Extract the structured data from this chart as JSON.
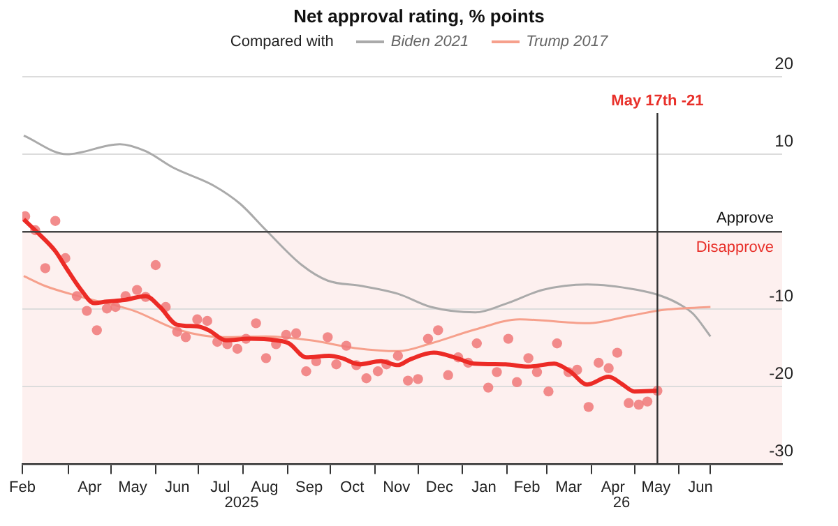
{
  "chart_data": {
    "type": "line",
    "title": "Net approval rating, % points",
    "legend_title": "Compared with",
    "legend": "top",
    "grid": "y",
    "xlim": [
      "2025-02-28",
      "2026-08-12"
    ],
    "xticks": [
      {
        "value": "2025-02-28",
        "label": "Feb"
      },
      {
        "value": "2025-04-01",
        "label": null
      },
      {
        "value": "2025-04-16",
        "label": "Apr"
      },
      {
        "value": "2025-05-01",
        "label": null
      },
      {
        "value": "2025-05-16",
        "label": "May"
      },
      {
        "value": "2025-06-01",
        "label": null
      },
      {
        "value": "2025-06-16",
        "label": "Jun"
      },
      {
        "value": "2025-07-01",
        "label": null
      },
      {
        "value": "2025-07-16",
        "label": "Jul"
      },
      {
        "value": "2025-08-01",
        "label": null
      },
      {
        "value": "2025-08-16",
        "label": "Aug"
      },
      {
        "value": "2025-09-01",
        "label": null
      },
      {
        "value": "2025-09-16",
        "label": "Sep"
      },
      {
        "value": "2025-10-01",
        "label": null
      },
      {
        "value": "2025-10-16",
        "label": "Oct"
      },
      {
        "value": "2025-11-01",
        "label": null
      },
      {
        "value": "2025-11-16",
        "label": "Nov"
      },
      {
        "value": "2025-12-01",
        "label": null
      },
      {
        "value": "2025-12-16",
        "label": "Dec"
      },
      {
        "value": "2026-01-01",
        "label": null
      },
      {
        "value": "2026-01-16",
        "label": "Jan"
      },
      {
        "value": "2026-02-01",
        "label": null
      },
      {
        "value": "2026-02-15",
        "label": "Feb"
      },
      {
        "value": "2026-03-01",
        "label": null
      },
      {
        "value": "2026-03-16",
        "label": "Mar"
      },
      {
        "value": "2026-04-01",
        "label": null
      },
      {
        "value": "2026-04-16",
        "label": "Apr"
      },
      {
        "value": "2026-05-01",
        "label": null
      },
      {
        "value": "2026-05-16",
        "label": "May"
      },
      {
        "value": "2026-06-01",
        "label": null
      },
      {
        "value": "2026-06-16",
        "label": "Jun"
      },
      {
        "value": "2026-06-23",
        "label": null
      }
    ],
    "annotations": [
      "2025",
      "26"
    ],
    "ylim": [
      -30,
      20
    ],
    "yticks": [
      -30,
      -20,
      -10,
      10,
      20
    ],
    "bands": [
      {
        "axis": "y",
        "from": -30,
        "to": 0,
        "label": "Disapprove",
        "color": "#fdf0ef"
      }
    ],
    "ref_lines": [
      {
        "axis": "y",
        "value": 0,
        "label": "Approve",
        "color": "#444444"
      },
      {
        "axis": "x",
        "value": "2026-05-17",
        "label": "May 17th -21",
        "color": "#333333"
      }
    ],
    "series": [
      {
        "type": "line",
        "name": "Biden 2021",
        "color": "#aaaaaa",
        "x": [
          "2025-03-01",
          "2025-03-31",
          "2025-05-07",
          "2025-05-25",
          "2025-06-13",
          "2025-07-12",
          "2025-07-30",
          "2025-08-17",
          "2025-09-11",
          "2025-09-29",
          "2025-10-23",
          "2025-11-17",
          "2025-12-10",
          "2026-01-10",
          "2026-01-31",
          "2026-02-26",
          "2026-03-29",
          "2026-05-03",
          "2026-05-20",
          "2026-06-01",
          "2026-06-11",
          "2026-06-23"
        ],
        "values": [
          12.4,
          10,
          11.3,
          10.4,
          8.3,
          5.9,
          3.6,
          0.2,
          -4.3,
          -6.3,
          -7,
          -8,
          -9.7,
          -10.4,
          -9.3,
          -7.5,
          -6.8,
          -7.5,
          -8.3,
          -9.3,
          -10.6,
          -13.5
        ]
      },
      {
        "type": "line",
        "name": "Trump 2017",
        "color": "#f6a08c",
        "x": [
          "2025-03-01",
          "2025-03-16",
          "2025-04-10",
          "2025-05-17",
          "2025-06-16",
          "2025-07-18",
          "2025-08-17",
          "2025-09-17",
          "2025-10-18",
          "2025-11-17",
          "2025-12-10",
          "2026-01-10",
          "2026-02-10",
          "2026-03-29",
          "2026-04-29",
          "2026-05-20",
          "2026-06-23"
        ],
        "values": [
          -5.7,
          -7,
          -8.4,
          -10.2,
          -12.6,
          -13.6,
          -13.5,
          -14,
          -15,
          -15.4,
          -14.4,
          -12.6,
          -11.3,
          -11.8,
          -10.8,
          -10.1,
          -9.7
        ]
      },
      {
        "type": "scatter",
        "marker": "circle",
        "color": "#f07a7a",
        "x": [
          "2025-03-02",
          "2025-03-09",
          "2025-03-16",
          "2025-03-23",
          "2025-03-30",
          "2025-04-07",
          "2025-04-14",
          "2025-04-21",
          "2025-04-28",
          "2025-05-04",
          "2025-05-11",
          "2025-05-19",
          "2025-05-25",
          "2025-06-01",
          "2025-06-08",
          "2025-06-16",
          "2025-06-22",
          "2025-06-30",
          "2025-07-07",
          "2025-07-14",
          "2025-07-21",
          "2025-07-28",
          "2025-08-03",
          "2025-08-10",
          "2025-08-17",
          "2025-08-24",
          "2025-08-31",
          "2025-09-07",
          "2025-09-14",
          "2025-09-21",
          "2025-09-29",
          "2025-10-05",
          "2025-10-12",
          "2025-10-19",
          "2025-10-26",
          "2025-11-03",
          "2025-11-09",
          "2025-11-17",
          "2025-11-24",
          "2025-12-01",
          "2025-12-08",
          "2025-12-15",
          "2025-12-22",
          "2025-12-29",
          "2026-01-05",
          "2026-01-11",
          "2026-01-19",
          "2026-01-25",
          "2026-02-02",
          "2026-02-08",
          "2026-02-16",
          "2026-02-22",
          "2026-03-02",
          "2026-03-08",
          "2026-03-16",
          "2026-03-22",
          "2026-03-30",
          "2026-04-06",
          "2026-04-13",
          "2026-04-19",
          "2026-04-27",
          "2026-05-04",
          "2026-05-10",
          "2026-05-17"
        ],
        "values": [
          2.0,
          0.2,
          -4.7,
          1.4,
          -3.4,
          -8.3,
          -10.2,
          -12.7,
          -9.9,
          -9.7,
          -8.3,
          -7.5,
          -8.4,
          -4.3,
          -9.7,
          -12.9,
          -13.6,
          -11.3,
          -11.5,
          -14.2,
          -14.5,
          -15.1,
          -13.8,
          -11.8,
          -16.3,
          -14.5,
          -13.3,
          -13.1,
          -18,
          -16.7,
          -13.6,
          -17.1,
          -14.7,
          -17.2,
          -18.9,
          -18,
          -17.1,
          -16,
          -19.2,
          -19,
          -13.8,
          -12.7,
          -18.5,
          -16.2,
          -16.9,
          -14.4,
          -20.1,
          -18.1,
          -13.8,
          -19.4,
          -16.3,
          -18.1,
          -20.6,
          -14.4,
          -18.1,
          -17.8,
          -22.6,
          -16.9,
          -17.6,
          -15.6,
          -22.1,
          -22.3,
          -21.9,
          -20.5
        ]
      },
      {
        "type": "line",
        "color": "#ec2b26",
        "x": [
          "2025-03-01",
          "2025-03-10",
          "2025-03-23",
          "2025-03-30",
          "2025-04-10",
          "2025-04-19",
          "2025-04-28",
          "2025-05-10",
          "2025-05-25",
          "2025-06-04",
          "2025-06-16",
          "2025-06-30",
          "2025-07-08",
          "2025-07-20",
          "2025-08-05",
          "2025-08-24",
          "2025-09-02",
          "2025-09-14",
          "2025-09-30",
          "2025-10-09",
          "2025-10-21",
          "2025-11-05",
          "2025-11-17",
          "2025-11-25",
          "2025-12-12",
          "2025-12-28",
          "2026-01-09",
          "2026-01-31",
          "2026-02-16",
          "2026-03-06",
          "2026-03-17",
          "2026-03-29",
          "2026-04-13",
          "2026-04-22",
          "2026-05-01",
          "2026-05-17"
        ],
        "values": [
          1.6,
          0,
          -2.5,
          -4.5,
          -7.5,
          -9.2,
          -9,
          -8.8,
          -8.3,
          -9.7,
          -12,
          -12.2,
          -12.7,
          -14,
          -13.8,
          -14,
          -14.4,
          -16.2,
          -16,
          -16.3,
          -17.1,
          -16.7,
          -17.2,
          -16.5,
          -15.6,
          -16.3,
          -17,
          -17.1,
          -17.4,
          -17,
          -18,
          -19.7,
          -18.7,
          -19.6,
          -20.6,
          -20.5
        ]
      }
    ]
  }
}
